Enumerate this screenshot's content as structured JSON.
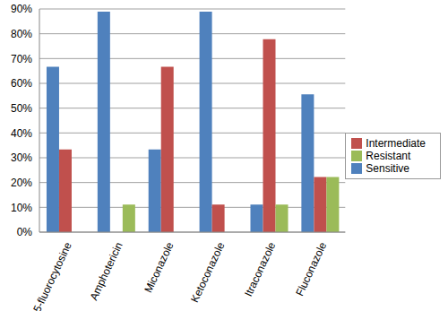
{
  "chart_data": {
    "type": "bar",
    "categories": [
      "5-fluorocytosine",
      "Amphotericin",
      "Miconazole",
      "Ketoconazole",
      "Itraconazole",
      "Fluconazole"
    ],
    "series": [
      {
        "name": "Sensitive",
        "color": "#4f81bd",
        "values": [
          66.7,
          88.9,
          33.3,
          88.9,
          11.1,
          55.6
        ]
      },
      {
        "name": "Intermediate",
        "color": "#c0504d",
        "values": [
          33.3,
          0,
          66.7,
          11.1,
          77.8,
          22.2
        ]
      },
      {
        "name": "Resistant",
        "color": "#9bbb59",
        "values": [
          0,
          11.1,
          0,
          0,
          11.1,
          22.2
        ]
      }
    ],
    "ylim": [
      0,
      90
    ],
    "yticks": [
      {
        "value": 0,
        "label": "0%"
      },
      {
        "value": 10,
        "label": "10%"
      },
      {
        "value": 20,
        "label": "20%"
      },
      {
        "value": 30,
        "label": "30%"
      },
      {
        "value": 40,
        "label": "40%"
      },
      {
        "value": 50,
        "label": "50%"
      },
      {
        "value": 60,
        "label": "60%"
      },
      {
        "value": 70,
        "label": "70%"
      },
      {
        "value": 80,
        "label": "80%"
      },
      {
        "value": 90,
        "label": "90%"
      }
    ],
    "grid": true,
    "legend": "right"
  }
}
